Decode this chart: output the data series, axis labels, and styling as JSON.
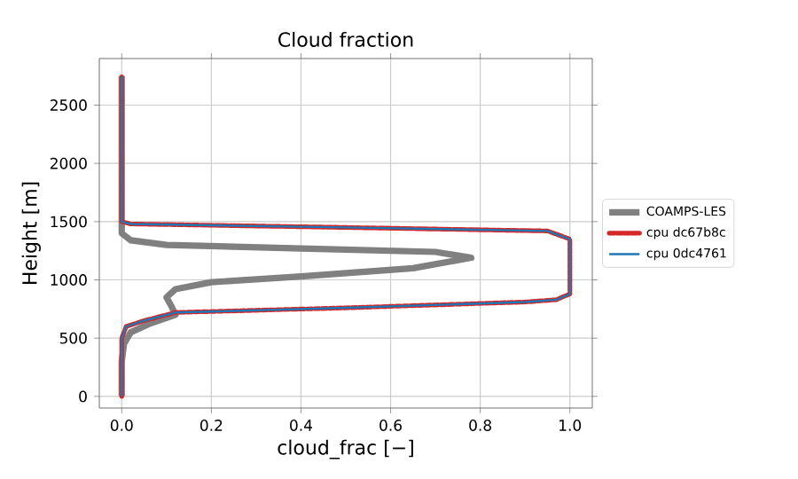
{
  "chart_data": {
    "type": "line",
    "title": "Cloud fraction",
    "xlabel": "cloud_frac [−]",
    "ylabel": "Height [m]",
    "xlim": [
      -0.05,
      1.05
    ],
    "ylim": [
      -100,
      2900
    ],
    "xticks": [
      {
        "value": 0,
        "label": "0.0"
      },
      0.2,
      0.4,
      0.6,
      0.8,
      {
        "value": 1,
        "label": "1.0"
      }
    ],
    "yticks": [
      0,
      500,
      1000,
      1500,
      2000,
      2500
    ],
    "grid": true,
    "legend": "right",
    "series": [
      {
        "name": "COAMPS-LES",
        "color": "#808080",
        "x": [
          0,
          0,
          0.005,
          0.02,
          0.06,
          0.12,
          0.11,
          0.1,
          0.12,
          0.2,
          0.4,
          0.65,
          0.78,
          0.7,
          0.4,
          0.1,
          0.02,
          0,
          0
        ],
        "values": [
          0,
          300,
          450,
          550,
          620,
          700,
          780,
          850,
          920,
          980,
          1030,
          1100,
          1190,
          1240,
          1270,
          1300,
          1340,
          1400,
          2750
        ]
      },
      {
        "name": "cpu dc67b8c",
        "color": "#d62728",
        "line_style": "dashed",
        "x": [
          0,
          0,
          0.01,
          0.05,
          0.12,
          0.5,
          0.9,
          0.97,
          1,
          1,
          0.95,
          0.5,
          0.02,
          0,
          0
        ],
        "values": [
          0,
          500,
          600,
          650,
          720,
          760,
          810,
          830,
          880,
          1350,
          1420,
          1450,
          1480,
          1500,
          2750
        ]
      },
      {
        "name": "cpu 0dc4761",
        "color": "#1f77b4",
        "line_style": "solid",
        "x": [
          0,
          0,
          0.01,
          0.05,
          0.12,
          0.5,
          0.9,
          0.97,
          1,
          1,
          0.95,
          0.5,
          0.02,
          0,
          0
        ],
        "values": [
          0,
          500,
          600,
          650,
          720,
          760,
          810,
          830,
          880,
          1350,
          1420,
          1450,
          1480,
          1500,
          2750
        ]
      }
    ]
  }
}
